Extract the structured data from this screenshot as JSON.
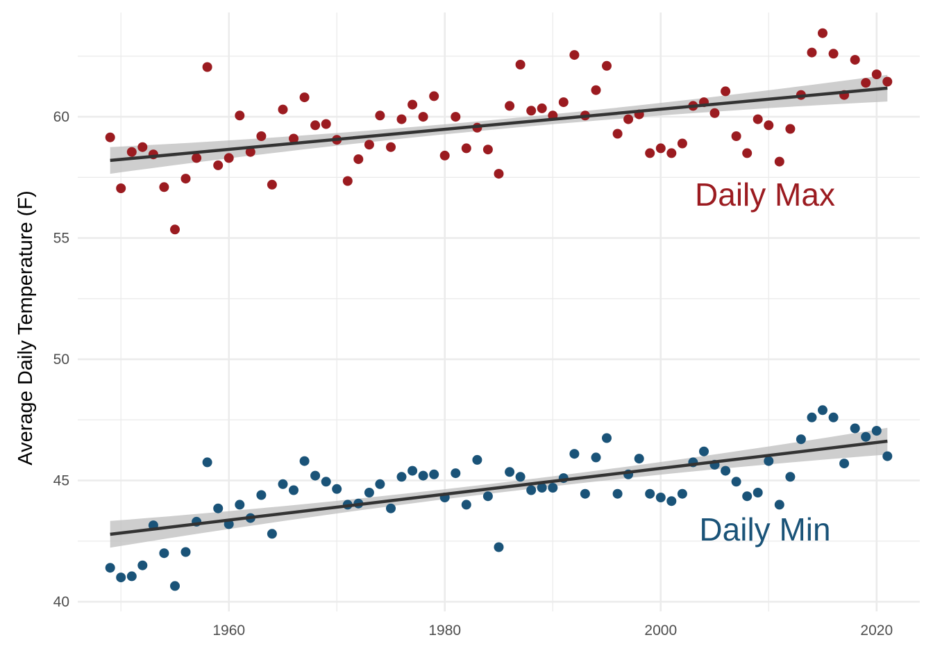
{
  "chart_data": {
    "type": "scatter",
    "title": "",
    "xlabel": "",
    "ylabel": "Average Daily Temperature (F)",
    "xlim": [
      1946,
      2024
    ],
    "ylim": [
      39.6,
      64.3
    ],
    "x_ticks": [
      {
        "value": 1960,
        "label": "1960"
      },
      {
        "value": 1980,
        "label": "1980"
      },
      {
        "value": 2000,
        "label": "2000"
      },
      {
        "value": 2020,
        "label": "2020"
      }
    ],
    "y_ticks": [
      {
        "value": 40,
        "label": "40"
      },
      {
        "value": 45,
        "label": "45"
      },
      {
        "value": 50,
        "label": "50"
      },
      {
        "value": 55,
        "label": "55"
      },
      {
        "value": 60,
        "label": "60"
      }
    ],
    "grid": true,
    "legend": "none",
    "x": [
      1949,
      1950,
      1951,
      1952,
      1953,
      1954,
      1955,
      1956,
      1957,
      1958,
      1959,
      1960,
      1961,
      1962,
      1963,
      1964,
      1965,
      1966,
      1967,
      1968,
      1969,
      1970,
      1971,
      1972,
      1973,
      1974,
      1975,
      1976,
      1977,
      1978,
      1979,
      1980,
      1981,
      1982,
      1983,
      1984,
      1985,
      1986,
      1987,
      1988,
      1989,
      1990,
      1991,
      1992,
      1993,
      1994,
      1995,
      1996,
      1997,
      1998,
      1999,
      2000,
      2001,
      2002,
      2003,
      2004,
      2005,
      2006,
      2007,
      2008,
      2009,
      2010,
      2011,
      2012,
      2013,
      2014,
      2015,
      2016,
      2017,
      2018,
      2019,
      2020,
      2021
    ],
    "series": [
      {
        "name": "Daily Max",
        "values": [
          59.15,
          57.05,
          58.55,
          58.75,
          58.45,
          57.1,
          55.35,
          57.45,
          58.3,
          62.05,
          58.0,
          58.3,
          60.05,
          58.55,
          59.2,
          57.2,
          60.3,
          59.1,
          60.8,
          59.65,
          59.7,
          59.05,
          57.35,
          58.25,
          58.85,
          60.05,
          58.75,
          59.9,
          60.5,
          60.0,
          60.85,
          58.4,
          60.0,
          58.7,
          59.55,
          58.65,
          57.65,
          60.45,
          62.15,
          60.25,
          60.35,
          60.05,
          60.6,
          62.55,
          60.05,
          61.1,
          62.1,
          59.3,
          59.9,
          60.1,
          58.5,
          58.7,
          58.5,
          58.9,
          60.45,
          60.6,
          60.15,
          61.05,
          59.2,
          58.5,
          59.9,
          59.65,
          58.15,
          59.5,
          60.9,
          62.65,
          63.45,
          62.6,
          60.9,
          62.35,
          61.4,
          61.75,
          61.45
        ],
        "color": "#9b1b20",
        "trend": [
          58.2,
          61.18
        ],
        "label": "Daily Max"
      },
      {
        "name": "Daily Min",
        "values": [
          41.4,
          41.0,
          41.05,
          41.5,
          43.15,
          42.0,
          40.65,
          42.05,
          43.3,
          45.75,
          43.85,
          43.2,
          44.0,
          43.45,
          44.4,
          42.8,
          44.85,
          44.6,
          45.8,
          45.2,
          44.95,
          44.65,
          44.0,
          44.05,
          44.5,
          44.85,
          43.85,
          45.15,
          45.4,
          45.2,
          45.25,
          44.3,
          45.3,
          44.0,
          45.85,
          44.35,
          42.25,
          45.35,
          45.15,
          44.6,
          44.7,
          44.7,
          45.1,
          46.1,
          44.45,
          45.95,
          46.75,
          44.45,
          45.25,
          45.9,
          44.45,
          44.3,
          44.15,
          44.45,
          45.75,
          46.2,
          45.65,
          45.4,
          44.95,
          44.35,
          44.5,
          45.8,
          44.0,
          45.15,
          46.7,
          47.6,
          47.9,
          47.6,
          45.7,
          47.15,
          46.8,
          47.05,
          46.0
        ],
        "color": "#1a5378",
        "trend": [
          42.78,
          46.62
        ],
        "label": "Daily Min"
      }
    ],
    "colors": {
      "trend_line": "#333333",
      "ribbon": "#bebebe",
      "grid": "#ebebeb"
    }
  }
}
